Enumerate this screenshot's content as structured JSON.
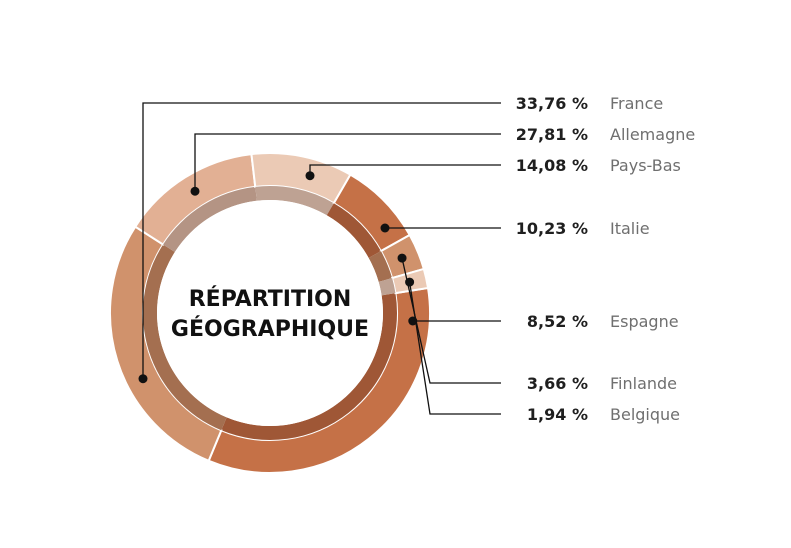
{
  "chart_data": {
    "type": "pie",
    "title": [
      "RÉPARTITION",
      "GÉOGRAPHIQUE"
    ],
    "categories": [
      "France",
      "Allemagne",
      "Pays-Bas",
      "Italie",
      "Espagne",
      "Finlande",
      "Belgique"
    ],
    "values": [
      33.76,
      27.81,
      14.08,
      10.23,
      8.52,
      3.66,
      1.94
    ],
    "value_labels": [
      "33,76 %",
      "27,81 %",
      "14,08 %",
      "10,23 %",
      "8,52 %",
      "3,66 %",
      "1,94 %"
    ],
    "colors": [
      "#c57147",
      "#d0926c",
      "#e2b094",
      "#ebcab5",
      "#c57147",
      "#d0926c",
      "#ebcab5"
    ],
    "inner_ring_colors": [
      "#9f5736",
      "#a46f50",
      "#b49484",
      "#bea293",
      "#9f5736",
      "#a46f50",
      "#bea293"
    ]
  }
}
